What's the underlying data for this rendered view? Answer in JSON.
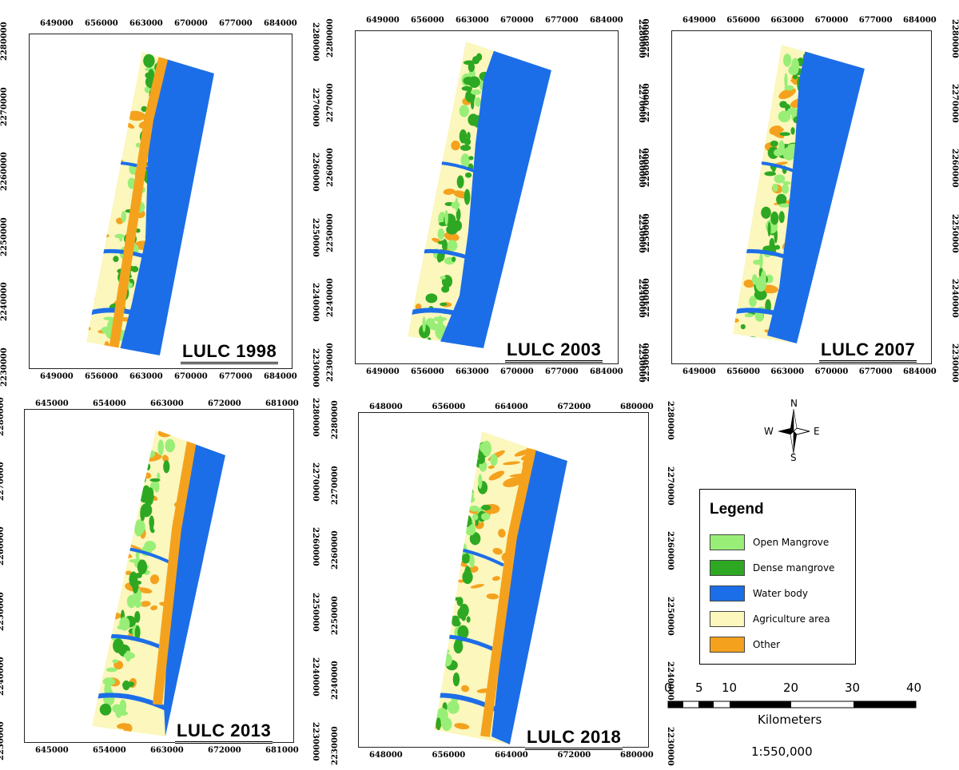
{
  "panels": [
    {
      "title": "LULC 1998",
      "x_ticks": [
        "649000",
        "656000",
        "663000",
        "670000",
        "677000",
        "684000"
      ],
      "y_ticks": [
        "2280000",
        "2270000",
        "2260000",
        "2250000",
        "2240000",
        "2230000"
      ]
    },
    {
      "title": "LULC 2003",
      "x_ticks": [
        "649000",
        "656000",
        "663000",
        "670000",
        "677000",
        "684000"
      ],
      "y_ticks": [
        "2280000",
        "2270000",
        "2260000",
        "2250000",
        "2240000",
        "2230000"
      ]
    },
    {
      "title": "LULC 2007",
      "x_ticks": [
        "649000",
        "656000",
        "663000",
        "670000",
        "677000",
        "684000"
      ],
      "y_ticks": [
        "2280000",
        "2270000",
        "2260000",
        "2250000",
        "2240000",
        "2230000"
      ]
    },
    {
      "title": "LULC 2013",
      "x_ticks": [
        "645000",
        "654000",
        "663000",
        "672000",
        "681000"
      ],
      "y_ticks": [
        "2280000",
        "2270000",
        "2260000",
        "2250000",
        "2240000",
        "2230000"
      ]
    },
    {
      "title": "LULC 2018",
      "x_ticks": [
        "648000",
        "656000",
        "664000",
        "672000",
        "680000"
      ],
      "y_ticks": [
        "2280000",
        "2270000",
        "2260000",
        "2250000",
        "2240000",
        "2230000"
      ]
    }
  ],
  "legend": {
    "title": "Legend",
    "items": [
      {
        "label": "Open Mangrove",
        "color": "#99ee77"
      },
      {
        "label": "Dense mangrove",
        "color": "#2ea822"
      },
      {
        "label": "Water body",
        "color": "#1c6ee8"
      },
      {
        "label": "Agriculture area",
        "color": "#fbf7bd"
      },
      {
        "label": "Other",
        "color": "#f4a21e"
      }
    ]
  },
  "north_arrow": {
    "n": "N",
    "s": "S",
    "e": "E",
    "w": "W"
  },
  "scale": {
    "ticks": [
      "0",
      "5",
      "10",
      "20",
      "30",
      "40"
    ],
    "unit": "Kilometers",
    "ratio": "1:550,000"
  }
}
